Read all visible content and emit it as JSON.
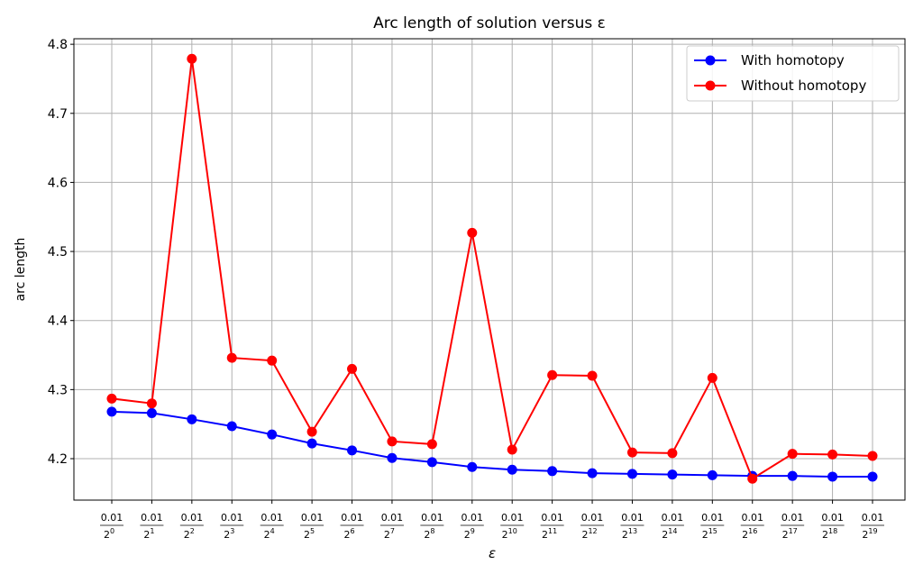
{
  "chart_data": {
    "type": "line",
    "title": "Arc length of solution versus ε",
    "xlabel": "ε",
    "ylabel": "arc length",
    "ylim": [
      4.14,
      4.808
    ],
    "yticks": [
      4.2,
      4.3,
      4.4,
      4.5,
      4.6,
      4.7,
      4.8
    ],
    "ytick_labels": [
      "4.2",
      "4.3",
      "4.4",
      "4.5",
      "4.6",
      "4.7",
      "4.8"
    ],
    "x_numerator": "0.01",
    "x_base": "2",
    "x_exponents": [
      "0",
      "1",
      "2",
      "3",
      "4",
      "5",
      "6",
      "7",
      "8",
      "9",
      "10",
      "11",
      "12",
      "13",
      "14",
      "15",
      "16",
      "17",
      "18",
      "19"
    ],
    "grid": true,
    "legend_position": "top-right",
    "series": [
      {
        "name": "With homotopy",
        "color": "#0000ff",
        "values": [
          4.268,
          4.266,
          4.257,
          4.247,
          4.235,
          4.222,
          4.212,
          4.201,
          4.195,
          4.188,
          4.184,
          4.182,
          4.179,
          4.178,
          4.177,
          4.176,
          4.175,
          4.175,
          4.174,
          4.174
        ]
      },
      {
        "name": "Without homotopy",
        "color": "#ff0000",
        "values": [
          4.287,
          4.28,
          4.779,
          4.346,
          4.342,
          4.239,
          4.33,
          4.225,
          4.221,
          4.527,
          4.213,
          4.321,
          4.32,
          4.209,
          4.208,
          4.317,
          4.171,
          4.207,
          4.206,
          4.204
        ]
      }
    ]
  }
}
